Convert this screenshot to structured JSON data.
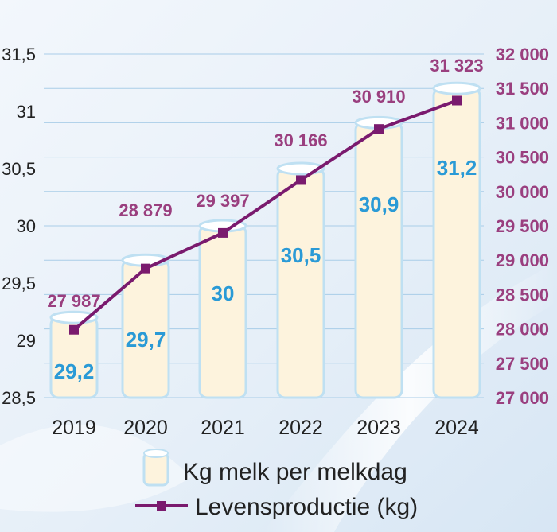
{
  "chart_data": {
    "type": "bar",
    "categories": [
      "2019",
      "2020",
      "2021",
      "2022",
      "2023",
      "2024"
    ],
    "series": [
      {
        "name": "Kg melk per melkdag",
        "type": "bar",
        "axis": "left",
        "values": [
          29.2,
          29.7,
          30,
          30.5,
          30.9,
          31.2
        ],
        "labels": [
          "29,2",
          "29,7",
          "30",
          "30,5",
          "30,9",
          "31,2"
        ],
        "color": "#fdf3dd"
      },
      {
        "name": "Levensproductie (kg)",
        "type": "line",
        "axis": "right",
        "values": [
          27987,
          28879,
          29397,
          30166,
          30910,
          31323
        ],
        "labels": [
          "27 987",
          "28 879",
          "29 397",
          "30 166",
          "30 910",
          "31 323"
        ],
        "color": "#7a1a6e"
      }
    ],
    "y_left": {
      "lim": [
        28.5,
        31.5
      ],
      "ticks": [
        28.5,
        29,
        29.5,
        30,
        30.5,
        31,
        31.5
      ],
      "tick_labels": [
        "28,5",
        "29",
        "29,5",
        "30",
        "30,5",
        "31",
        "31,5"
      ]
    },
    "y_right": {
      "lim": [
        27000,
        32000
      ],
      "ticks": [
        27000,
        27500,
        28000,
        28500,
        29000,
        29500,
        30000,
        30500,
        31000,
        31500,
        32000
      ],
      "tick_labels": [
        "27 000",
        "27 500",
        "28 000",
        "28 500",
        "29 000",
        "29 500",
        "30 000",
        "30 500",
        "31 000",
        "31 500",
        "32 000"
      ]
    },
    "grid": true,
    "legend_position": "bottom",
    "colors": {
      "bar_label": "#2a9ad6",
      "line_label": "#9a3f7f",
      "grid": "#a9cde8",
      "bar_stroke": "#bfe0f2"
    }
  }
}
